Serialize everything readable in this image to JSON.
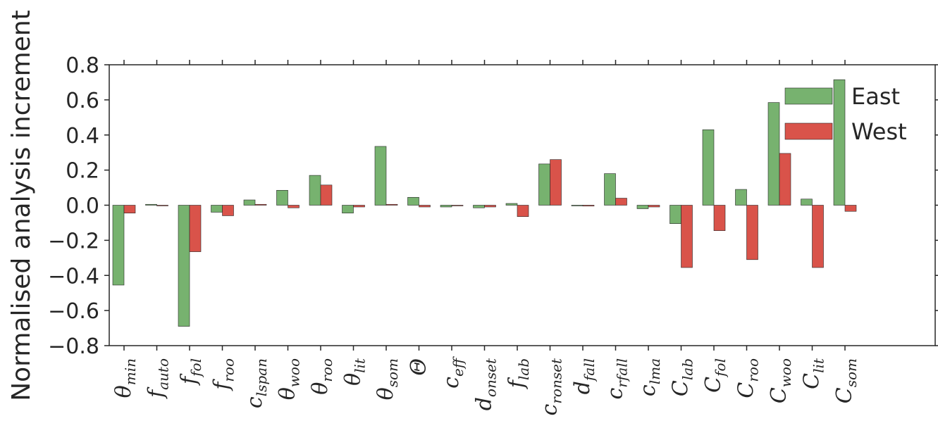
{
  "chart_data": {
    "type": "bar",
    "ylabel": "Normalised analysis increment",
    "xlabel": "",
    "ylim": [
      -0.8,
      0.8
    ],
    "yticks": [
      "0.8",
      "0.6",
      "0.4",
      "0.2",
      "0.0",
      "−0.2",
      "−0.4",
      "−0.6",
      "−0.8"
    ],
    "ytick_values": [
      0.8,
      0.6,
      0.4,
      0.2,
      0.0,
      -0.2,
      -0.4,
      -0.6,
      -0.8
    ],
    "grid": false,
    "legend_position": "top-right",
    "categories": [
      {
        "base": "θ",
        "sub": "min"
      },
      {
        "base": "f",
        "sub": "auto"
      },
      {
        "base": "f",
        "sub": "fol"
      },
      {
        "base": "f",
        "sub": "roo"
      },
      {
        "base": "c",
        "sub": "lspan"
      },
      {
        "base": "θ",
        "sub": "woo"
      },
      {
        "base": "θ",
        "sub": "roo"
      },
      {
        "base": "θ",
        "sub": "lit"
      },
      {
        "base": "θ",
        "sub": "som"
      },
      {
        "base": "Θ",
        "sub": ""
      },
      {
        "base": "c",
        "sub": "eff"
      },
      {
        "base": "d",
        "sub": "onset"
      },
      {
        "base": "f",
        "sub": "lab"
      },
      {
        "base": "c",
        "sub": "ronset"
      },
      {
        "base": "d",
        "sub": "fall"
      },
      {
        "base": "c",
        "sub": "rfall"
      },
      {
        "base": "c",
        "sub": "lma"
      },
      {
        "base": "C",
        "sub": "lab"
      },
      {
        "base": "C",
        "sub": "fol"
      },
      {
        "base": "C",
        "sub": "roo"
      },
      {
        "base": "C",
        "sub": "woo"
      },
      {
        "base": "C",
        "sub": "lit"
      },
      {
        "base": "C",
        "sub": "som"
      }
    ],
    "series": [
      {
        "name": "East",
        "color": "#77b26f",
        "values": [
          -0.455,
          0.005,
          -0.69,
          -0.04,
          0.03,
          0.085,
          0.17,
          -0.045,
          0.335,
          0.045,
          -0.01,
          -0.015,
          0.01,
          0.235,
          0.0,
          0.18,
          -0.02,
          -0.105,
          0.43,
          0.09,
          0.585,
          0.035,
          0.715
        ]
      },
      {
        "name": "West",
        "color": "#d9534a",
        "values": [
          -0.045,
          0.0,
          -0.265,
          -0.06,
          0.005,
          -0.015,
          0.115,
          -0.01,
          0.005,
          -0.01,
          0.0,
          -0.01,
          -0.065,
          0.26,
          -0.005,
          0.04,
          -0.01,
          -0.355,
          -0.145,
          -0.31,
          0.295,
          -0.355,
          -0.035
        ]
      }
    ]
  }
}
